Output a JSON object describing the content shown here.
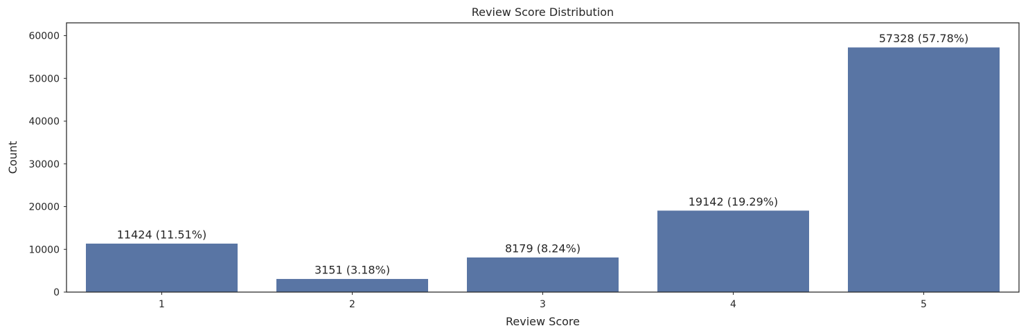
{
  "chart_data": {
    "type": "bar",
    "title": "Review Score Distribution",
    "xlabel": "Review Score",
    "ylabel": "Count",
    "categories": [
      "1",
      "2",
      "3",
      "4",
      "5"
    ],
    "values": [
      11424,
      3151,
      8179,
      19142,
      57328
    ],
    "bar_labels": [
      "11424 (11.51%)",
      "3151 (3.18%)",
      "8179 (8.24%)",
      "19142 (19.29%)",
      "57328 (57.78%)"
    ],
    "ylim": [
      0,
      63000
    ],
    "yticks": [
      0,
      10000,
      20000,
      30000,
      40000,
      50000,
      60000
    ],
    "ytick_labels": [
      "0",
      "10000",
      "20000",
      "30000",
      "40000",
      "50000",
      "60000"
    ],
    "grid": false,
    "legend": "none",
    "bar_color": "#5975a4",
    "bar_edge_color": "#ffffff",
    "axis_color": "#262626"
  }
}
